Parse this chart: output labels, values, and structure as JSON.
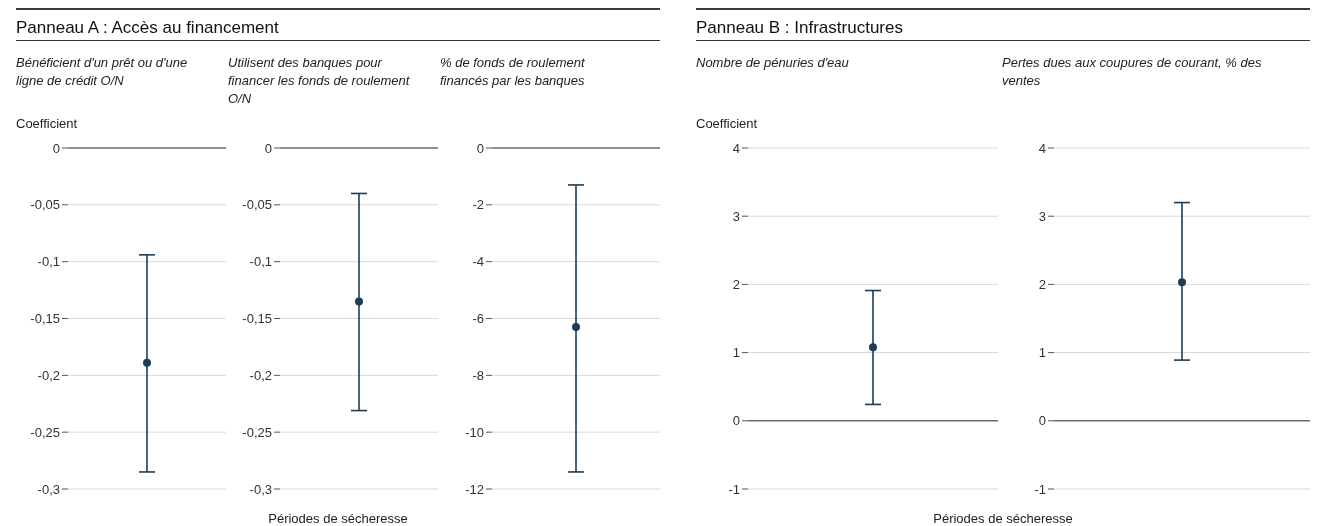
{
  "chart_data": [
    {
      "type": "scatter",
      "title": "Panneau A : Accès au financement",
      "subtitle": "Bénéficient d'un prêt ou d'une ligne de crédit O/N",
      "ylabel": "Coefficient",
      "xlabel": "Périodes de sécheresse",
      "categories": [
        null
      ],
      "values": [
        -0.189
      ],
      "errors": [
        [
          -0.285,
          -0.094
        ]
      ],
      "color": "#1d3c55",
      "marker": "circle",
      "ylim": [
        -0.3,
        0
      ],
      "yticks": [
        0,
        {
          "value": -0.05,
          "label": "-0,05"
        },
        {
          "value": -0.1,
          "label": "-0,1"
        },
        {
          "value": -0.15,
          "label": "-0,15"
        },
        {
          "value": -0.2,
          "label": "-0,2"
        },
        {
          "value": -0.25,
          "label": "-0,25"
        },
        {
          "value": -0.3,
          "label": "-0,3"
        }
      ],
      "grid": "y",
      "ref_lines": [
        {
          "axis": "y",
          "value": 0,
          "color": "#333333"
        }
      ],
      "tick_labels": "y"
    },
    {
      "type": "scatter",
      "subtitle": "Utilisent des banques pour financer les fonds de roulement O/N",
      "categories": [
        null
      ],
      "values": [
        -0.135
      ],
      "errors": [
        [
          -0.231,
          -0.04
        ]
      ],
      "color": "#1d3c55",
      "marker": "circle",
      "ylim": [
        -0.3,
        0
      ],
      "yticks": [
        0,
        {
          "value": -0.05,
          "label": "-0,05"
        },
        {
          "value": -0.1,
          "label": "-0,1"
        },
        {
          "value": -0.15,
          "label": "-0,15"
        },
        {
          "value": -0.2,
          "label": "-0,2"
        },
        {
          "value": -0.25,
          "label": "-0,25"
        },
        {
          "value": -0.3,
          "label": "-0,3"
        }
      ],
      "grid": "y",
      "ref_lines": [
        {
          "axis": "y",
          "value": 0,
          "color": "#333333"
        }
      ],
      "tick_labels": "y"
    },
    {
      "type": "scatter",
      "subtitle": "% de fonds de roulement financés par les banques",
      "categories": [
        null
      ],
      "values": [
        -6.3
      ],
      "errors": [
        [
          -11.4,
          -1.3
        ]
      ],
      "color": "#1d3c55",
      "marker": "circle",
      "ylim": [
        -12,
        0
      ],
      "yticks": [
        0,
        -2,
        -4,
        -6,
        -8,
        -10,
        -12
      ],
      "grid": "y",
      "ref_lines": [
        {
          "axis": "y",
          "value": 0,
          "color": "#333333"
        }
      ],
      "tick_labels": "y"
    },
    {
      "type": "scatter",
      "title": "Panneau B : Infrastructures",
      "subtitle": "Nombre de pénuries d'eau",
      "ylabel": "Coefficient",
      "xlabel": "Périodes de sécheresse",
      "categories": [
        null
      ],
      "values": [
        1.08
      ],
      "errors": [
        [
          0.24,
          1.91
        ]
      ],
      "color": "#1d3c55",
      "marker": "circle",
      "ylim": [
        -1,
        4
      ],
      "yticks": [
        -1,
        0,
        1,
        2,
        3,
        4
      ],
      "grid": "y",
      "ref_lines": [
        {
          "axis": "y",
          "value": 0,
          "color": "#333333"
        }
      ],
      "tick_labels": "y"
    },
    {
      "type": "scatter",
      "subtitle": "Pertes dues aux coupures de courant, % des ventes",
      "categories": [
        null
      ],
      "values": [
        2.03
      ],
      "errors": [
        [
          0.89,
          3.2
        ]
      ],
      "color": "#1d3c55",
      "marker": "circle",
      "ylim": [
        -1,
        4
      ],
      "yticks": [
        -1,
        0,
        1,
        2,
        3,
        4
      ],
      "grid": "y",
      "ref_lines": [
        {
          "axis": "y",
          "value": 0,
          "color": "#333333"
        }
      ],
      "tick_labels": "y"
    }
  ]
}
